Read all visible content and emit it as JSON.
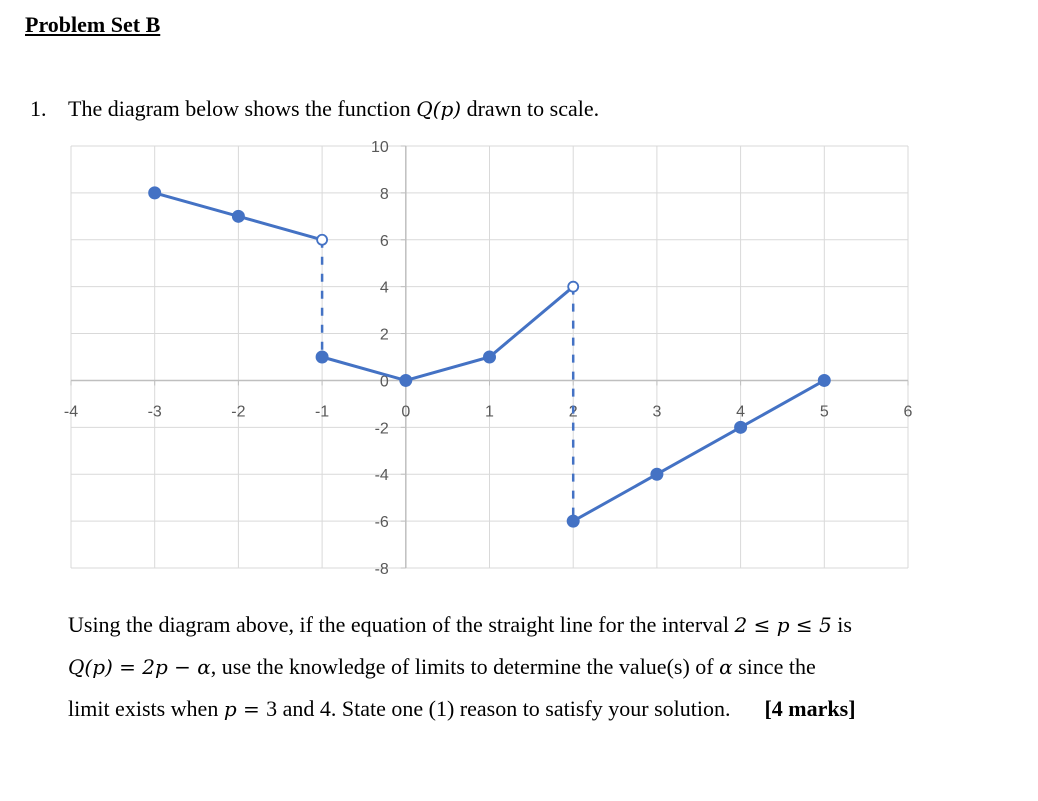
{
  "heading": "Problem Set B",
  "question": {
    "number": "1.",
    "intro_prefix": "The diagram below shows the function ",
    "intro_func": "Q(p)",
    "intro_suffix": " drawn to scale.",
    "para_line1_a": "Using the diagram above, if the equation of the straight line for the interval ",
    "para_line1_math": "2 ≤ p ≤ 5",
    "para_line1_b": " is",
    "para_line2_math": "Q(p) = 2p − α",
    "para_line2_a": ", use the knowledge of limits to determine the value(s) of ",
    "para_line2_alpha": "α",
    "para_line2_b": " since the",
    "para_line3_a": "limit exists when ",
    "para_line3_math": "p = ",
    "para_line3_b": "3 and 4. State one (1) reason to satisfy your solution.",
    "marks": "[4 marks]"
  },
  "chart_data": {
    "type": "line",
    "xlim": [
      -4,
      6
    ],
    "ylim": [
      -8,
      10
    ],
    "x_ticks": [
      "-4",
      "-3",
      "-2",
      "-1",
      "0",
      "1",
      "2",
      "3",
      "4",
      "5",
      "6"
    ],
    "y_ticks": [
      "10",
      "8",
      "6",
      "4",
      "2",
      "0",
      "-2",
      "-4",
      "-6",
      "-8"
    ],
    "grid": true,
    "line_color": "#4472C4",
    "segments": [
      {
        "points": [
          [
            -3,
            8
          ],
          [
            -2,
            7
          ],
          [
            -1,
            6
          ]
        ],
        "style": "solid"
      },
      {
        "points": [
          [
            -1,
            1
          ],
          [
            0,
            0
          ],
          [
            1,
            1
          ],
          [
            2,
            4
          ]
        ],
        "style": "solid"
      },
      {
        "points": [
          [
            2,
            -6
          ],
          [
            3,
            -4
          ],
          [
            4,
            -2
          ],
          [
            5,
            0
          ]
        ],
        "style": "solid"
      },
      {
        "points": [
          [
            -1,
            6
          ],
          [
            -1,
            1
          ]
        ],
        "style": "dashed"
      },
      {
        "points": [
          [
            2,
            4
          ],
          [
            2,
            -6
          ]
        ],
        "style": "dashed"
      }
    ],
    "closed_points": [
      [
        -3,
        8
      ],
      [
        -2,
        7
      ],
      [
        -1,
        1
      ],
      [
        0,
        0
      ],
      [
        1,
        1
      ],
      [
        2,
        -6
      ],
      [
        3,
        -4
      ],
      [
        4,
        -2
      ],
      [
        5,
        0
      ]
    ],
    "open_points": [
      [
        -1,
        6
      ],
      [
        2,
        4
      ]
    ]
  }
}
